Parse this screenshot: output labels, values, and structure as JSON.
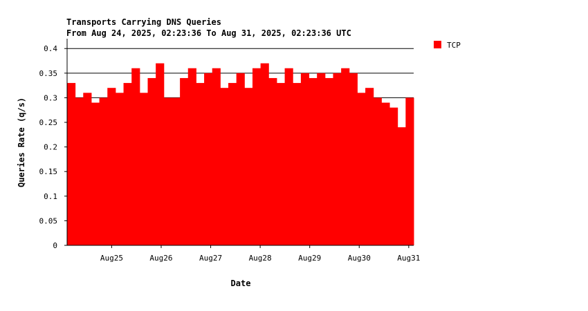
{
  "chart_data": {
    "type": "area",
    "title": "Transports Carrying DNS Queries",
    "subtitle": "From Aug 24, 2025, 02:23:36 To Aug 31, 2025, 02:23:36 UTC",
    "xlabel": "Date",
    "ylabel": "Queries Rate (q/s)",
    "ylim": [
      0,
      0.42
    ],
    "yticks": [
      "0",
      "0.05",
      "0.1",
      "0.15",
      "0.2",
      "0.25",
      "0.3",
      "0.35",
      "0.4"
    ],
    "ytick_values": [
      0,
      0.05,
      0.1,
      0.15,
      0.2,
      0.25,
      0.3,
      0.35,
      0.4
    ],
    "gridlines_at": [
      0.3,
      0.35,
      0.4
    ],
    "x_range": [
      "Aug 24, 2025, 02:23:36",
      "Aug 31, 2025, 02:23:36"
    ],
    "xticks": [
      "Aug25",
      "Aug26",
      "Aug27",
      "Aug28",
      "Aug29",
      "Aug30",
      "Aug31"
    ],
    "legend_position": "top-right",
    "series": [
      {
        "name": "TCP",
        "color": "#ff0000",
        "x": [
          "Aug 24 02:00",
          "Aug 24 06:00",
          "Aug 24 10:00",
          "Aug 24 14:00",
          "Aug 24 18:00",
          "Aug 24 22:00",
          "Aug 25 02:00",
          "Aug 25 06:00",
          "Aug 25 10:00",
          "Aug 25 14:00",
          "Aug 25 18:00",
          "Aug 25 22:00",
          "Aug 26 02:00",
          "Aug 26 06:00",
          "Aug 26 10:00",
          "Aug 26 14:00",
          "Aug 26 18:00",
          "Aug 26 22:00",
          "Aug 27 02:00",
          "Aug 27 06:00",
          "Aug 27 10:00",
          "Aug 27 14:00",
          "Aug 27 18:00",
          "Aug 27 22:00",
          "Aug 28 02:00",
          "Aug 28 06:00",
          "Aug 28 10:00",
          "Aug 28 14:00",
          "Aug 28 18:00",
          "Aug 28 22:00",
          "Aug 29 02:00",
          "Aug 29 06:00",
          "Aug 29 10:00",
          "Aug 29 14:00",
          "Aug 29 18:00",
          "Aug 29 22:00",
          "Aug 30 02:00",
          "Aug 30 06:00",
          "Aug 30 10:00",
          "Aug 30 14:00",
          "Aug 30 18:00",
          "Aug 30 22:00",
          "Aug 31 02:00"
        ],
        "values": [
          0.33,
          0.3,
          0.31,
          0.29,
          0.3,
          0.32,
          0.31,
          0.33,
          0.36,
          0.31,
          0.34,
          0.37,
          0.3,
          0.3,
          0.34,
          0.36,
          0.33,
          0.35,
          0.36,
          0.32,
          0.33,
          0.35,
          0.32,
          0.36,
          0.37,
          0.34,
          0.33,
          0.36,
          0.33,
          0.35,
          0.34,
          0.35,
          0.34,
          0.35,
          0.36,
          0.35,
          0.31,
          0.32,
          0.3,
          0.29,
          0.28,
          0.24,
          0.3
        ]
      }
    ]
  }
}
